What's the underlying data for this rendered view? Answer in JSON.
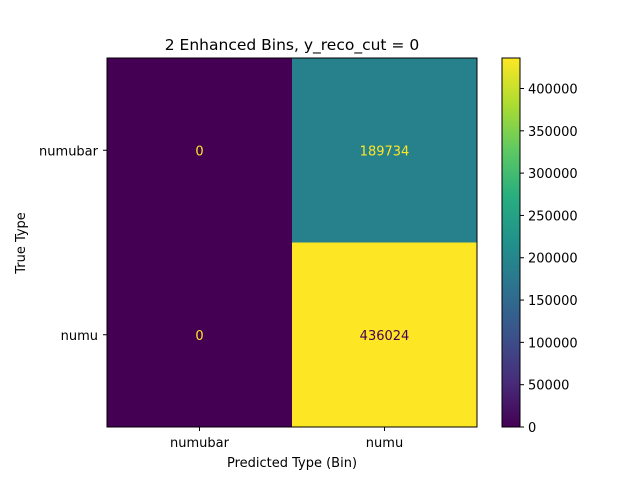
{
  "chart_data": {
    "type": "heatmap",
    "title": "2 Enhanced Bins, y_reco_cut = 0",
    "xlabel": "Predicted Type (Bin)",
    "ylabel": "True Type",
    "x_categories": [
      "numubar",
      "numu"
    ],
    "y_categories": [
      "numubar",
      "numu"
    ],
    "values": [
      [
        0,
        189734
      ],
      [
        0,
        436024
      ]
    ],
    "colorbar": {
      "colormap": "viridis",
      "range": [
        0,
        436024
      ],
      "ticks": [
        0,
        50000,
        100000,
        150000,
        200000,
        250000,
        300000,
        350000,
        400000
      ]
    },
    "grid": false
  }
}
